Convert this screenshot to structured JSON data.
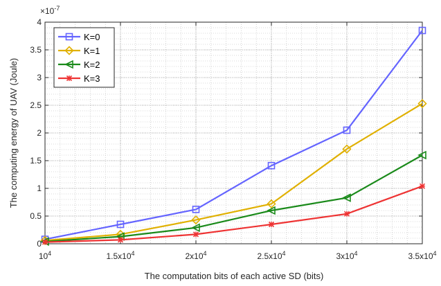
{
  "chart_data": {
    "type": "line",
    "title": "",
    "xlabel": "The computation bits of each active SD (bits)",
    "ylabel": "The computing energy of UAV (Joule)",
    "y_exponent_label": "×10",
    "y_exponent_power": "-7",
    "x": [
      10000,
      15000,
      20000,
      25000,
      30000,
      35000
    ],
    "xlim": [
      10000,
      35000
    ],
    "ylim": [
      0,
      4
    ],
    "x_ticks": [
      {
        "value": 10000,
        "base": "10",
        "exp": "4"
      },
      {
        "value": 15000,
        "base": "1.5x10",
        "exp": "4"
      },
      {
        "value": 20000,
        "base": "2x10",
        "exp": "4"
      },
      {
        "value": 25000,
        "base": "2.5x10",
        "exp": "4"
      },
      {
        "value": 30000,
        "base": "3x10",
        "exp": "4"
      },
      {
        "value": 35000,
        "base": "3.5x10",
        "exp": "4"
      }
    ],
    "y_ticks": [
      {
        "value": 0,
        "label": "0"
      },
      {
        "value": 0.5,
        "label": "0.5"
      },
      {
        "value": 1,
        "label": "1"
      },
      {
        "value": 1.5,
        "label": "1.5"
      },
      {
        "value": 2,
        "label": "2"
      },
      {
        "value": 2.5,
        "label": "2.5"
      },
      {
        "value": 3,
        "label": "3"
      },
      {
        "value": 3.5,
        "label": "3.5"
      },
      {
        "value": 4,
        "label": "4"
      }
    ],
    "grid": true,
    "minor_grid": true,
    "legend_position": "top-left",
    "series": [
      {
        "name": "K=0",
        "color": "#6464ff",
        "marker": "square",
        "values": [
          0.08,
          0.35,
          0.62,
          1.41,
          2.05,
          3.85
        ]
      },
      {
        "name": "K=1",
        "color": "#e0b000",
        "marker": "diamond",
        "values": [
          0.06,
          0.17,
          0.43,
          0.72,
          1.71,
          2.53
        ]
      },
      {
        "name": "K=2",
        "color": "#1a8a1a",
        "marker": "triangle-left",
        "values": [
          0.04,
          0.13,
          0.29,
          0.6,
          0.83,
          1.6
        ]
      },
      {
        "name": "K=3",
        "color": "#ee3333",
        "marker": "star",
        "values": [
          0.03,
          0.07,
          0.17,
          0.35,
          0.54,
          1.04
        ]
      }
    ]
  }
}
